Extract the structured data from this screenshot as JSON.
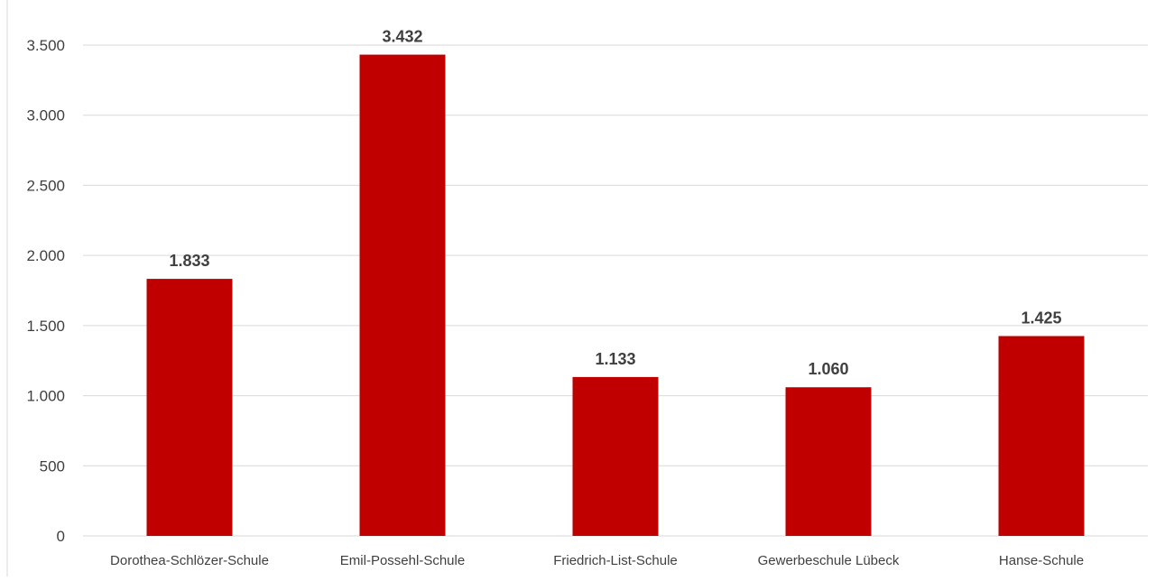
{
  "chart_data": {
    "type": "bar",
    "title": "",
    "xlabel": "",
    "ylabel": "",
    "categories": [
      "Dorothea-Schlözer-Schule",
      "Emil-Possehl-Schule",
      "Friedrich-List-Schule",
      "Gewerbeschule Lübeck",
      "Hanse-Schule"
    ],
    "values": [
      1833,
      3432,
      1133,
      1060,
      1425
    ],
    "data_labels": [
      "1.833",
      "3.432",
      "1.133",
      "1.060",
      "1.425"
    ],
    "ylim": [
      0,
      3500
    ],
    "yticks": [
      0,
      500,
      1000,
      1500,
      2000,
      2500,
      3000,
      3500
    ],
    "ytick_labels": [
      "0",
      "500",
      "1.000",
      "1.500",
      "2.000",
      "2.500",
      "3.000",
      "3.500"
    ],
    "grid": true,
    "legend": "none",
    "bar_color": "#c00000",
    "grid_color": "#d9d9d9"
  }
}
